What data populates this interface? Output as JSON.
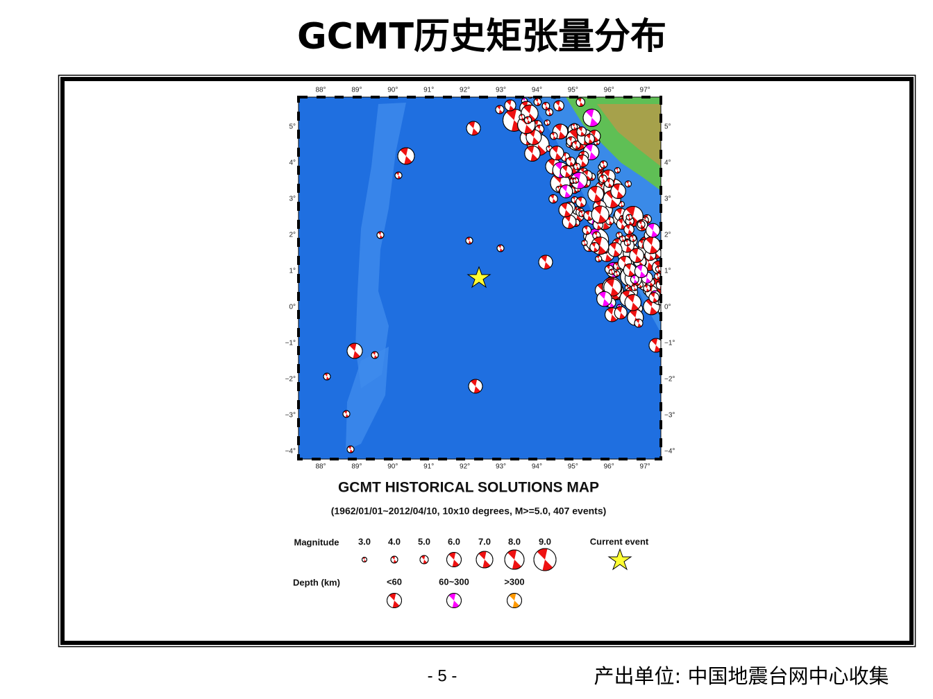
{
  "title": "GCMT历史矩张量分布",
  "map": {
    "lon_labels": [
      "88°",
      "89°",
      "90°",
      "91°",
      "92°",
      "93°",
      "94°",
      "95°",
      "96°",
      "97°"
    ],
    "lat_labels": [
      "5°",
      "4°",
      "3°",
      "2°",
      "1°",
      "0°",
      "−1°",
      "−2°",
      "−3°",
      "−4°"
    ],
    "title": "GCMT HISTORICAL SOLUTIONS MAP",
    "subtitle": "(1962/01/01~2012/04/10, 10x10 degrees, M>=5.0, 407 events)",
    "legend": {
      "magnitude_label": "Magnitude",
      "magnitudes": [
        "3.0",
        "4.0",
        "5.0",
        "6.0",
        "7.0",
        "8.0",
        "9.0"
      ],
      "current_event_label": "Current event",
      "depth_label": "Depth (km)",
      "depths": [
        "<60",
        "60~300",
        ">300"
      ]
    }
  },
  "footer": {
    "page": "- 5 -",
    "source": "产出单位: 中国地震台网中心收集"
  }
}
